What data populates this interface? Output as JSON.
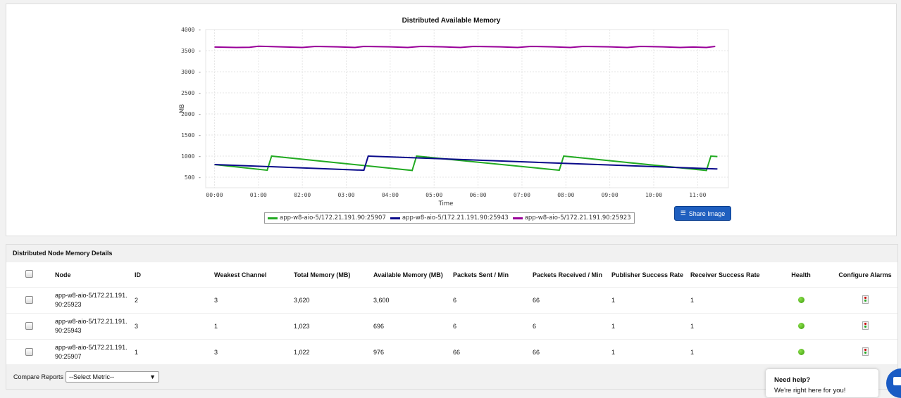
{
  "chart": {
    "share_label": "Share Image",
    "share_icon": "stack-icon"
  },
  "chart_data": {
    "type": "line",
    "title": "Distributed Available Memory",
    "xlabel": "Time",
    "ylabel": "MB",
    "xlim_hours": [
      -0.2,
      11.7
    ],
    "ylim": [
      250,
      4000
    ],
    "yticks": [
      500,
      1000,
      1500,
      2000,
      2500,
      3000,
      3500,
      4000
    ],
    "xticks": [
      "00:00",
      "01:00",
      "02:00",
      "03:00",
      "04:00",
      "05:00",
      "06:00",
      "07:00",
      "08:00",
      "09:00",
      "10:00",
      "11:00"
    ],
    "grid": true,
    "legend_position": "bottom",
    "series": [
      {
        "name": "app-w8-aio-5/172.21.191.90:25907",
        "color": "#22aa22",
        "points": [
          [
            0.0,
            800
          ],
          [
            1.2,
            665
          ],
          [
            1.3,
            1000
          ],
          [
            4.5,
            660
          ],
          [
            4.6,
            1000
          ],
          [
            7.85,
            665
          ],
          [
            7.95,
            1000
          ],
          [
            11.2,
            660
          ],
          [
            11.3,
            1000
          ],
          [
            11.45,
            990
          ]
        ]
      },
      {
        "name": "app-w8-aio-5/172.21.191.90:25943",
        "color": "#0a0a8a",
        "points": [
          [
            0.0,
            800
          ],
          [
            3.4,
            665
          ],
          [
            3.5,
            1000
          ],
          [
            11.45,
            695
          ]
        ]
      },
      {
        "name": "app-w8-aio-5/172.21.191.90:25923",
        "color": "#990099",
        "points": [
          [
            0.0,
            3585
          ],
          [
            0.5,
            3575
          ],
          [
            0.8,
            3580
          ],
          [
            1.0,
            3605
          ],
          [
            1.5,
            3590
          ],
          [
            2.0,
            3575
          ],
          [
            2.3,
            3600
          ],
          [
            2.8,
            3590
          ],
          [
            3.2,
            3575
          ],
          [
            3.4,
            3600
          ],
          [
            4.0,
            3590
          ],
          [
            4.4,
            3575
          ],
          [
            4.7,
            3600
          ],
          [
            5.2,
            3590
          ],
          [
            5.6,
            3575
          ],
          [
            5.9,
            3600
          ],
          [
            6.5,
            3590
          ],
          [
            6.9,
            3575
          ],
          [
            7.2,
            3600
          ],
          [
            7.7,
            3590
          ],
          [
            8.1,
            3575
          ],
          [
            8.4,
            3600
          ],
          [
            9.0,
            3590
          ],
          [
            9.4,
            3575
          ],
          [
            9.7,
            3600
          ],
          [
            10.2,
            3590
          ],
          [
            10.6,
            3575
          ],
          [
            10.9,
            3585
          ],
          [
            11.2,
            3575
          ],
          [
            11.4,
            3600
          ]
        ]
      }
    ]
  },
  "table": {
    "title": "Distributed Node Memory Details",
    "columns": [
      "Node",
      "ID",
      "Weakest Channel",
      "Total Memory  (MB)",
      "Available Memory (MB)",
      "Packets Sent / Min",
      "Packets Received / Min",
      "Publisher Success Rate",
      "Receiver Success Rate",
      "Health",
      "Configure Alarms"
    ],
    "rows": [
      {
        "node": "app-w8-aio-5/172.21.191.90:25923",
        "id": "2",
        "weakest": "3",
        "total": "3,620",
        "available": "3,600",
        "sent": "6",
        "received": "66",
        "pub": "1",
        "recv": "1",
        "health": "green"
      },
      {
        "node": "app-w8-aio-5/172.21.191.90:25943",
        "id": "3",
        "weakest": "1",
        "total": "1,023",
        "available": "696",
        "sent": "6",
        "received": "6",
        "pub": "1",
        "recv": "1",
        "health": "green"
      },
      {
        "node": "app-w8-aio-5/172.21.191.90:25907",
        "id": "1",
        "weakest": "3",
        "total": "1,022",
        "available": "976",
        "sent": "66",
        "received": "66",
        "pub": "1",
        "recv": "1",
        "health": "green"
      }
    ]
  },
  "footer": {
    "compare_label": "Compare Reports",
    "select_value": "--Select Metric--"
  },
  "help": {
    "title": "Need help?",
    "subtitle": "We're right here for you!"
  }
}
